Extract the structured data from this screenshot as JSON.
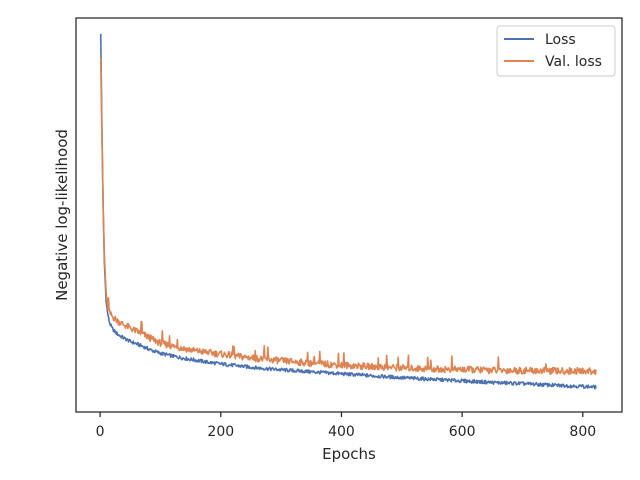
{
  "chart_data": {
    "type": "line",
    "xlabel": "Epochs",
    "ylabel": "Negative log-likelihood",
    "xlim": [
      -40,
      865
    ],
    "ylim": [
      0,
      1
    ],
    "y_ticks_shown": false,
    "x_ticks": [
      0,
      200,
      400,
      600,
      800
    ],
    "grid": false,
    "legend_position": "top-right",
    "series": [
      {
        "name": "Loss",
        "color": "#4c72b0",
        "points": [
          [
            1,
            0.96
          ],
          [
            3,
            0.72
          ],
          [
            5,
            0.52
          ],
          [
            7,
            0.38
          ],
          [
            10,
            0.28
          ],
          [
            13,
            0.245
          ],
          [
            16,
            0.225
          ],
          [
            20,
            0.212
          ],
          [
            25,
            0.203
          ],
          [
            30,
            0.196
          ],
          [
            40,
            0.187
          ],
          [
            50,
            0.179
          ],
          [
            60,
            0.173
          ],
          [
            70,
            0.167
          ],
          [
            80,
            0.16
          ],
          [
            90,
            0.154
          ],
          [
            100,
            0.149
          ],
          [
            120,
            0.142
          ],
          [
            140,
            0.136
          ],
          [
            160,
            0.131
          ],
          [
            180,
            0.126
          ],
          [
            200,
            0.122
          ],
          [
            230,
            0.117
          ],
          [
            260,
            0.112
          ],
          [
            300,
            0.107
          ],
          [
            350,
            0.102
          ],
          [
            400,
            0.097
          ],
          [
            450,
            0.092
          ],
          [
            500,
            0.087
          ],
          [
            550,
            0.083
          ],
          [
            600,
            0.079
          ],
          [
            650,
            0.075
          ],
          [
            700,
            0.072
          ],
          [
            750,
            0.068
          ],
          [
            800,
            0.065
          ],
          [
            822,
            0.063
          ]
        ]
      },
      {
        "name": "Val. loss",
        "color": "#dd8452",
        "points": [
          [
            1,
            0.9
          ],
          [
            3,
            0.7
          ],
          [
            5,
            0.52
          ],
          [
            7,
            0.4
          ],
          [
            10,
            0.3
          ],
          [
            13,
            0.265
          ],
          [
            16,
            0.25
          ],
          [
            20,
            0.243
          ],
          [
            25,
            0.236
          ],
          [
            30,
            0.23
          ],
          [
            40,
            0.221
          ],
          [
            50,
            0.213
          ],
          [
            60,
            0.205
          ],
          [
            70,
            0.198
          ],
          [
            80,
            0.19
          ],
          [
            90,
            0.182
          ],
          [
            100,
            0.175
          ],
          [
            120,
            0.167
          ],
          [
            140,
            0.161
          ],
          [
            160,
            0.155
          ],
          [
            180,
            0.151
          ],
          [
            200,
            0.147
          ],
          [
            230,
            0.141
          ],
          [
            260,
            0.136
          ],
          [
            300,
            0.13
          ],
          [
            350,
            0.124
          ],
          [
            400,
            0.119
          ],
          [
            450,
            0.115
          ],
          [
            500,
            0.112
          ],
          [
            550,
            0.109
          ],
          [
            600,
            0.108
          ],
          [
            650,
            0.106
          ],
          [
            700,
            0.105
          ],
          [
            750,
            0.104
          ],
          [
            800,
            0.104
          ],
          [
            822,
            0.103
          ]
        ]
      }
    ]
  }
}
